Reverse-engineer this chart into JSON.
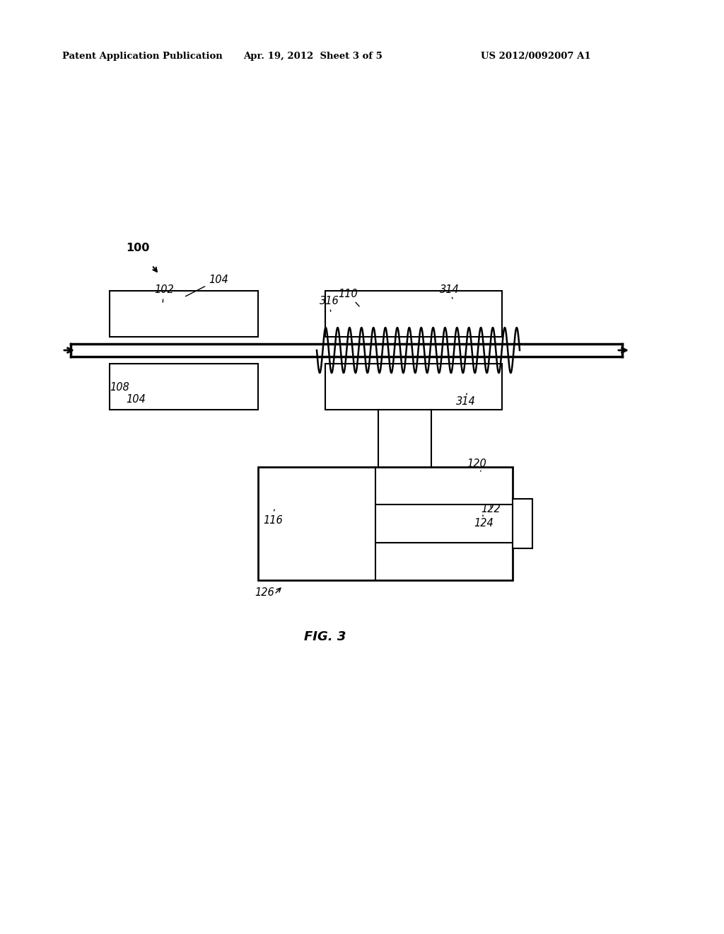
{
  "header_left": "Patent Application Publication",
  "header_mid": "Apr. 19, 2012  Sheet 3 of 5",
  "header_right": "US 2012/0092007 A1",
  "fig_label": "FIG. 3",
  "bg_color": "#ffffff",
  "line_color": "#000000"
}
